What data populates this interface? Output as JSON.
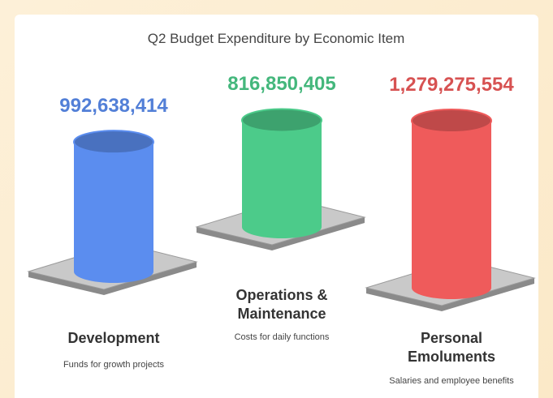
{
  "chart_data": {
    "type": "bar",
    "title": "Q2 Budget Expenditure by Economic Item",
    "categories": [
      "Development",
      "Operations & Maintenance",
      "Personal Emoluments"
    ],
    "descriptions": [
      "Funds for growth projects",
      "Costs for daily functions",
      "Salaries and employee benefits"
    ],
    "values": [
      992638414,
      816850405,
      1279275554
    ],
    "value_labels": [
      "992,638,414",
      "816,850,405",
      "1,279,275,554"
    ],
    "colors": [
      "#5b8def",
      "#4ccb8a",
      "#ef5b5b"
    ]
  }
}
